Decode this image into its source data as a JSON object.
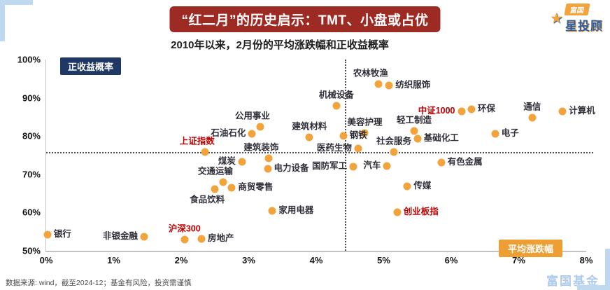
{
  "header": {
    "logo": {
      "brand": "富国",
      "product": "星投顾",
      "star_icon": "★"
    }
  },
  "footer": {
    "source_note": "数据来源: wind，截至2024-12；基金有风险，投资需谨慎",
    "watermark": "富国基金"
  },
  "colors": {
    "dot": "#F2A33C",
    "label": "#2e2e38",
    "highlight": "#C00000",
    "title_bg": "#9E2B23",
    "ylabel_badge_bg": "#1F3864",
    "xlabel_badge_bg": "#EE9F33",
    "corner_decoration": "#BFDAF0"
  },
  "chart_data": {
    "type": "scatter",
    "title": "“红二月”的历史启示：TMT、小盘或占优",
    "subtitle": "2010年以来，2月份的平均涨跌幅和正收益概率",
    "xlabel": "平均涨跌幅",
    "ylabel": "正收益概率",
    "xlim": [
      0,
      8
    ],
    "ylim": [
      50,
      100
    ],
    "x_ticks": [
      "0%",
      "1%",
      "2%",
      "3%",
      "4%",
      "5%",
      "6%",
      "7%",
      "8%"
    ],
    "y_ticks": [
      "100%",
      "90%",
      "80%",
      "70%",
      "60%",
      "50%"
    ],
    "grid": false,
    "legend": false,
    "reference_line_y": 75.8,
    "reference_line_x": 4.42,
    "points": [
      {
        "label": "银行",
        "x": 0.02,
        "y": 54.3,
        "pos": "right"
      },
      {
        "label": "非银金融",
        "x": 1.45,
        "y": 53.6,
        "pos": "left"
      },
      {
        "label": "沪深300",
        "x": 2.05,
        "y": 53.0,
        "pos": "above",
        "highlight": true
      },
      {
        "label": "房地产",
        "x": 2.3,
        "y": 53.2,
        "pos": "right"
      },
      {
        "label": "食品饮料",
        "x": 2.5,
        "y": 66.2,
        "pos": "below-left"
      },
      {
        "label": "交通运输",
        "x": 2.62,
        "y": 68.0,
        "pos": "above-left"
      },
      {
        "label": "商贸零售",
        "x": 2.75,
        "y": 66.5,
        "pos": "right"
      },
      {
        "label": "煤炭",
        "x": 2.9,
        "y": 73.2,
        "pos": "left"
      },
      {
        "label": "上证指数",
        "x": 2.35,
        "y": 75.8,
        "pos": "above-left",
        "highlight": true
      },
      {
        "label": "建筑装饰",
        "x": 3.3,
        "y": 74.2,
        "pos": "above-left"
      },
      {
        "label": "电力设备",
        "x": 3.28,
        "y": 71.5,
        "pos": "right"
      },
      {
        "label": "石油石化",
        "x": 3.05,
        "y": 80.5,
        "pos": "left"
      },
      {
        "label": "公用事业",
        "x": 3.17,
        "y": 82.5,
        "pos": "above-left"
      },
      {
        "label": "家用电器",
        "x": 3.35,
        "y": 60.5,
        "pos": "right"
      },
      {
        "label": "建筑材料",
        "x": 3.9,
        "y": 79.6,
        "pos": "above"
      },
      {
        "label": "机械设备",
        "x": 4.3,
        "y": 88.0,
        "pos": "above"
      },
      {
        "label": "农林牧渔",
        "x": 4.92,
        "y": 93.6,
        "pos": "above-left"
      },
      {
        "label": "纺织服饰",
        "x": 5.08,
        "y": 93.2,
        "pos": "right"
      },
      {
        "label": "美容护理",
        "x": 4.72,
        "y": 80.8,
        "pos": "above"
      },
      {
        "label": "钢铁",
        "x": 4.4,
        "y": 80.0,
        "pos": "right"
      },
      {
        "label": "医药生物",
        "x": 4.62,
        "y": 76.8,
        "pos": "left"
      },
      {
        "label": "轻工制造",
        "x": 5.45,
        "y": 81.3,
        "pos": "above"
      },
      {
        "label": "基础化工",
        "x": 5.5,
        "y": 79.3,
        "pos": "right"
      },
      {
        "label": "社会服务",
        "x": 5.15,
        "y": 75.8,
        "pos": "above"
      },
      {
        "label": "国防军工",
        "x": 4.55,
        "y": 72.0,
        "pos": "left"
      },
      {
        "label": "汽车",
        "x": 5.05,
        "y": 72.2,
        "pos": "left"
      },
      {
        "label": "有色金属",
        "x": 5.85,
        "y": 73.0,
        "pos": "right"
      },
      {
        "label": "传媒",
        "x": 5.35,
        "y": 66.8,
        "pos": "right"
      },
      {
        "label": "创业板指",
        "x": 5.2,
        "y": 60.0,
        "pos": "right",
        "highlight": true
      },
      {
        "label": "中证1000",
        "x": 6.15,
        "y": 86.5,
        "pos": "left",
        "highlight": true
      },
      {
        "label": "环保",
        "x": 6.3,
        "y": 87.0,
        "pos": "right"
      },
      {
        "label": "电子",
        "x": 6.65,
        "y": 80.5,
        "pos": "right"
      },
      {
        "label": "通信",
        "x": 7.2,
        "y": 84.8,
        "pos": "above"
      },
      {
        "label": "计算机",
        "x": 7.65,
        "y": 86.5,
        "pos": "right"
      }
    ]
  }
}
